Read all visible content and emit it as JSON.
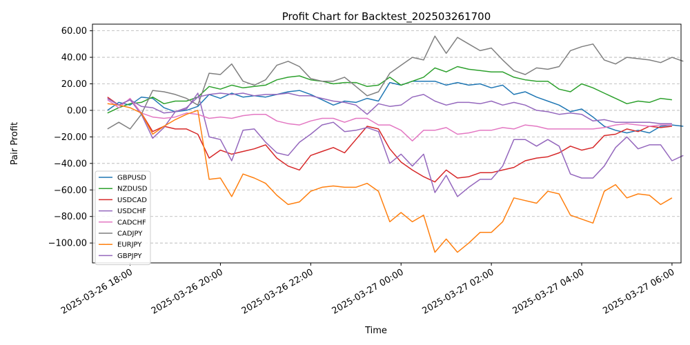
{
  "chart_data": {
    "type": "line",
    "title": "Profit Chart for Backtest_202503261700",
    "xlabel": "Time",
    "ylabel": "Pair Profit",
    "x_start": "2025-03-26 17:30",
    "x_interval_minutes": 15,
    "x_ticks": [
      "2025-03-26 18:00",
      "2025-03-26 20:00",
      "2025-03-26 22:00",
      "2025-03-27 00:00",
      "2025-03-27 02:00",
      "2025-03-27 04:00",
      "2025-03-27 06:00"
    ],
    "xlim": [
      "2025-03-26 17:10",
      "2025-03-27 06:12"
    ],
    "yticks": [
      "60.00",
      "40.00",
      "20.00",
      "0.00",
      "−20.00",
      "−40.00",
      "−60.00",
      "−80.00",
      "−100.00"
    ],
    "ylim": [
      -115,
      65
    ],
    "grid": "y",
    "legend_position": "lower-left",
    "series": [
      {
        "name": "GBPUSD",
        "color": "#1f77b4",
        "values": [
          0,
          6,
          4,
          10,
          9,
          2,
          -1,
          0,
          3,
          12,
          9,
          13,
          10,
          11,
          10,
          12,
          14,
          15,
          12,
          8,
          4,
          7,
          6,
          9,
          7,
          21,
          19,
          22,
          22,
          22,
          19,
          21,
          19,
          20,
          17,
          19,
          12,
          14,
          10,
          7,
          4,
          -1,
          1,
          -5,
          -12,
          -15,
          -17,
          -15,
          -17,
          -12,
          -11,
          -12
        ]
      },
      {
        "name": "NZDUSD",
        "color": "#2ca02c",
        "values": [
          -2,
          2,
          5,
          6,
          10,
          5,
          7,
          7,
          10,
          18,
          16,
          19,
          17,
          18,
          19,
          23,
          25,
          26,
          23,
          22,
          20,
          21,
          21,
          18,
          19,
          25,
          19,
          22,
          25,
          32,
          29,
          33,
          31,
          30,
          29,
          29,
          25,
          23,
          22,
          22,
          16,
          14,
          20,
          17,
          13,
          9,
          5,
          7,
          6,
          9,
          8
        ]
      },
      {
        "name": "USDCAD",
        "color": "#d62728",
        "values": [
          10,
          4,
          8,
          -2,
          -16,
          -12,
          -14,
          -14,
          -18,
          -36,
          -30,
          -33,
          -31,
          -29,
          -26,
          -36,
          -42,
          -45,
          -34,
          -31,
          -28,
          -32,
          -22,
          -12,
          -14,
          -29,
          -39,
          -45,
          -50,
          -54,
          -45,
          -51,
          -50,
          -47,
          -47,
          -45,
          -43,
          -38,
          -36,
          -35,
          -32,
          -27,
          -30,
          -28,
          -19,
          -18,
          -14,
          -16,
          -12,
          -13,
          -12
        ]
      },
      {
        "name": "USDCHF",
        "color": "#9467bd",
        "values": [
          9,
          4,
          8,
          -3,
          -21,
          -13,
          -1,
          1,
          13,
          -20,
          -22,
          -38,
          -15,
          -14,
          -24,
          -32,
          -34,
          -24,
          -18,
          -11,
          -9,
          -16,
          -15,
          -13,
          -16,
          -40,
          -33,
          -42,
          -33,
          -62,
          -49,
          -65,
          -58,
          -52,
          -52,
          -42,
          -22,
          -22,
          -27,
          -22,
          -27,
          -48,
          -51,
          -51,
          -42,
          -28,
          -20,
          -29,
          -26,
          -26,
          -38,
          -34
        ]
      },
      {
        "name": "CADCHF",
        "color": "#e377c2",
        "values": [
          8,
          2,
          9,
          -2,
          -5,
          -6,
          -5,
          -2,
          -3,
          -6,
          -5,
          -6,
          -4,
          -3,
          -3,
          -8,
          -10,
          -11,
          -8,
          -6,
          -6,
          -9,
          -6,
          -6,
          -11,
          -11,
          -15,
          -23,
          -15,
          -15,
          -13,
          -18,
          -17,
          -15,
          -15,
          -13,
          -14,
          -11,
          -12,
          -14,
          -14,
          -14,
          -14,
          -14,
          -13,
          -11,
          -10,
          -11,
          -12,
          -11,
          -11
        ]
      },
      {
        "name": "CADJPY",
        "color": "#7f7f7f",
        "values": [
          -14,
          -9,
          -14,
          -3,
          15,
          14,
          12,
          9,
          4,
          28,
          27,
          35,
          22,
          19,
          23,
          34,
          37,
          33,
          24,
          22,
          22,
          25,
          18,
          11,
          14,
          28,
          34,
          40,
          38,
          56,
          43,
          55,
          50,
          45,
          47,
          38,
          30,
          27,
          32,
          31,
          33,
          45,
          48,
          50,
          38,
          35,
          40,
          39,
          38,
          36,
          40,
          37
        ]
      },
      {
        "name": "EURJPY",
        "color": "#ff7f0e",
        "values": [
          5,
          4,
          2,
          -2,
          -18,
          -12,
          -7,
          -3,
          0,
          -52,
          -51,
          -65,
          -48,
          -51,
          -55,
          -64,
          -71,
          -69,
          -61,
          -58,
          -57,
          -58,
          -58,
          -55,
          -61,
          -84,
          -77,
          -84,
          -79,
          -107,
          -97,
          -107,
          -100,
          -92,
          -92,
          -84,
          -66,
          -68,
          -70,
          -61,
          -63,
          -79,
          -82,
          -85,
          -61,
          -56,
          -66,
          -63,
          -64,
          -71,
          -66
        ]
      },
      {
        "name": "GBPJPY",
        "color": "#9467bd",
        "values": [
          9,
          4,
          8,
          3,
          2,
          -2,
          -1,
          2,
          10,
          12,
          13,
          12,
          13,
          11,
          12,
          12,
          13,
          11,
          11,
          9,
          7,
          6,
          4,
          -3,
          5,
          3,
          4,
          10,
          12,
          7,
          4,
          6,
          6,
          5,
          7,
          4,
          6,
          4,
          0,
          -1,
          -3,
          -2,
          -3,
          -8,
          -7,
          -9,
          -9,
          -9,
          -9,
          -10,
          -10
        ]
      }
    ]
  }
}
